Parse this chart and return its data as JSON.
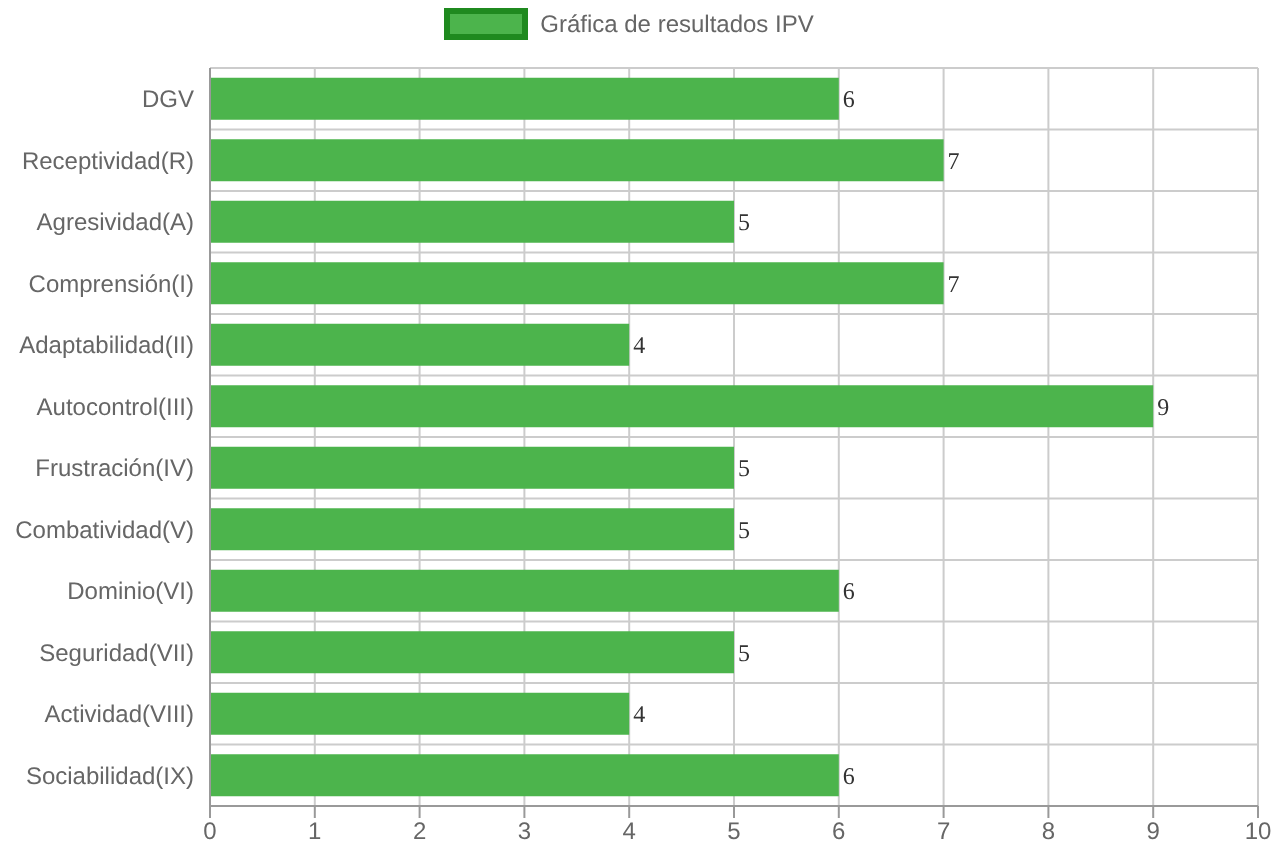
{
  "chart_data": {
    "type": "bar",
    "orientation": "horizontal",
    "categories": [
      "DGV",
      "Receptividad(R)",
      "Agresividad(A)",
      "Comprensión(I)",
      "Adaptabilidad(II)",
      "Autocontrol(III)",
      "Frustración(IV)",
      "Combatividad(V)",
      "Dominio(VI)",
      "Seguridad(VII)",
      "Actividad(VIII)",
      "Sociabilidad(IX)"
    ],
    "series": [
      {
        "name": "Gráfica de resultados IPV",
        "color": "#4cb44c",
        "values": [
          6,
          7,
          5,
          7,
          4,
          9,
          5,
          5,
          6,
          5,
          4,
          6
        ]
      }
    ],
    "xlim": [
      0,
      10
    ],
    "xticks": [
      0,
      1,
      2,
      3,
      4,
      5,
      6,
      7,
      8,
      9,
      10
    ],
    "grid": true,
    "legend": "top",
    "data_labels": true
  }
}
